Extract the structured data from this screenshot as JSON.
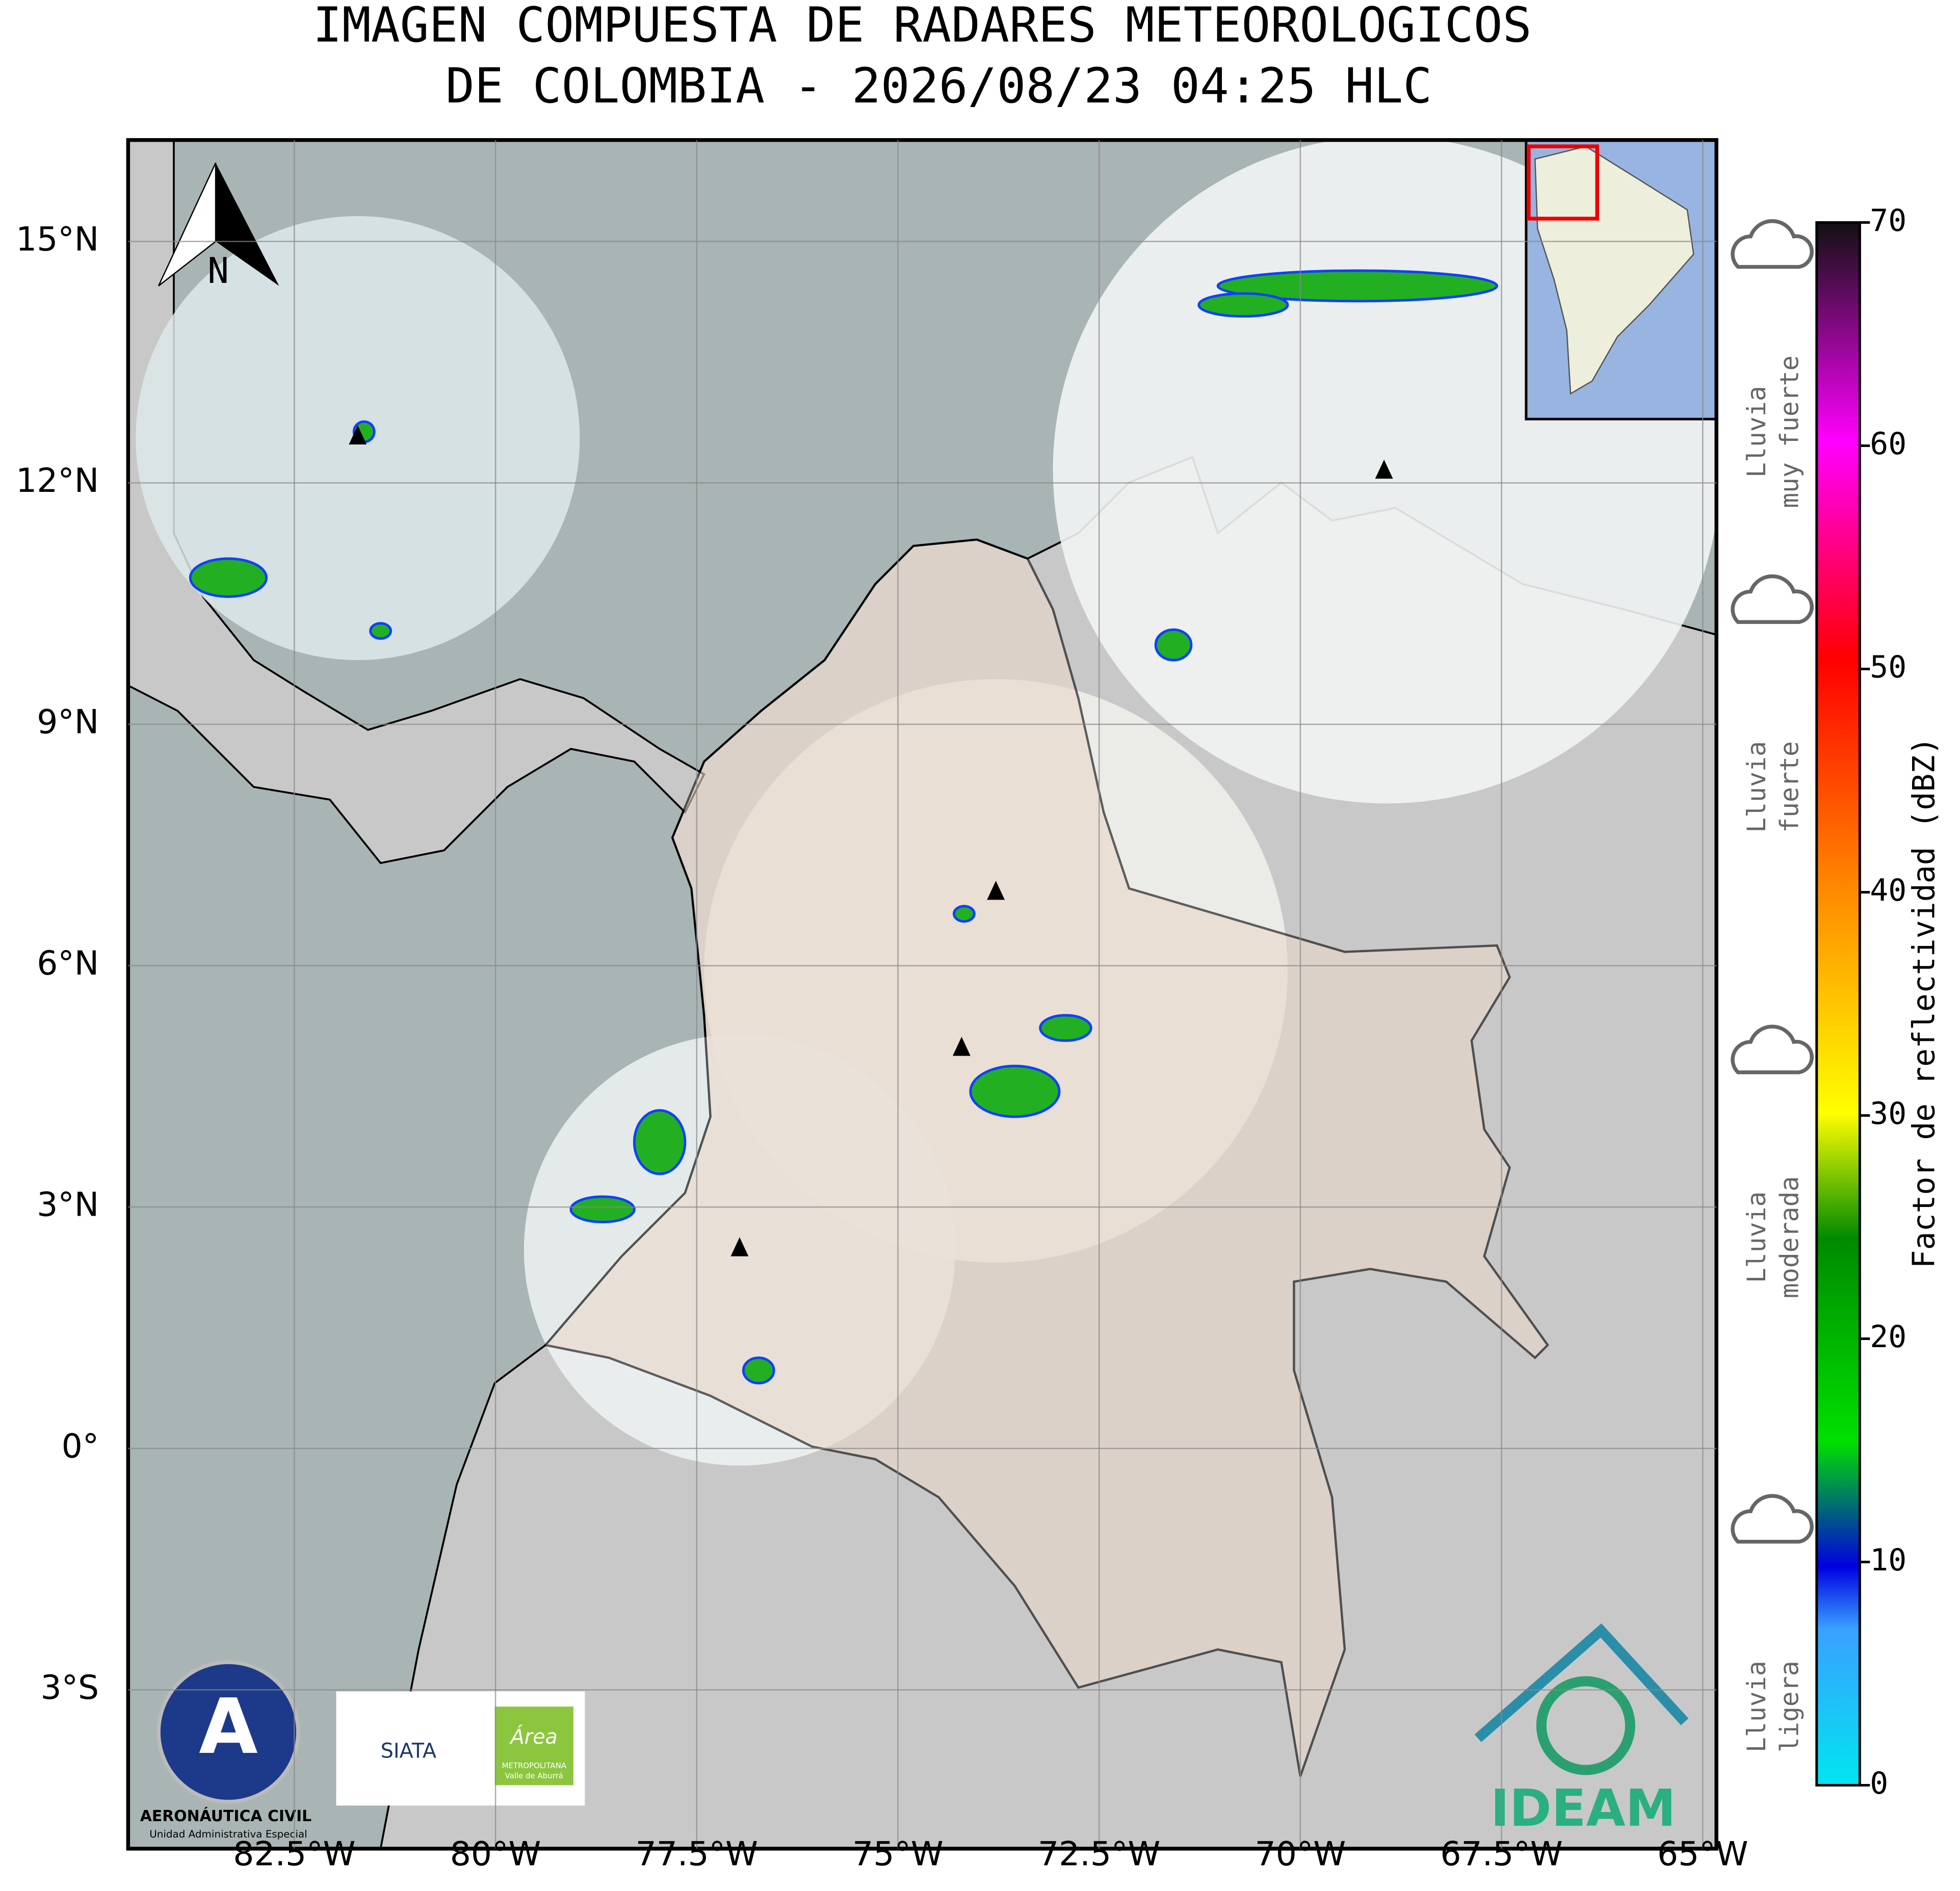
{
  "title": [
    "IMAGEN COMPUESTA DE RADARES METEOROLOGICOS",
    "DE COLOMBIA - 2026/08/23 04:25 HLC"
  ],
  "lon_ticks": [
    "82.5°W",
    "80°W",
    "77.5°W",
    "75°W",
    "72.5°W",
    "70°W",
    "67.5°W",
    "65°W"
  ],
  "lat_ticks": [
    "15°N",
    "12°N",
    "9°N",
    "6°N",
    "3°N",
    "0°",
    "3°S"
  ],
  "north_arrow": "N",
  "colorbar": {
    "label": "Factor de reflectividad (dBZ)",
    "ticks": [
      0,
      10,
      20,
      30,
      40,
      50,
      60,
      70
    ]
  },
  "rain_levels": [
    [
      "Lluvia",
      "muy fuerte"
    ],
    [
      "Lluvia",
      "fuerte"
    ],
    [
      "Lluvia",
      "moderada"
    ],
    [
      "Lluvia",
      "ligera"
    ]
  ],
  "logos": {
    "aerocivil": "AERONÁUTICA CIVIL",
    "aerocivil_sub": "Unidad Administrativa Especial",
    "siata": "SIATA",
    "area": "Área",
    "area_sub1": "METROPOLITANA",
    "area_sub2": "Valle de Aburrá",
    "ideam": "IDEAM"
  }
}
